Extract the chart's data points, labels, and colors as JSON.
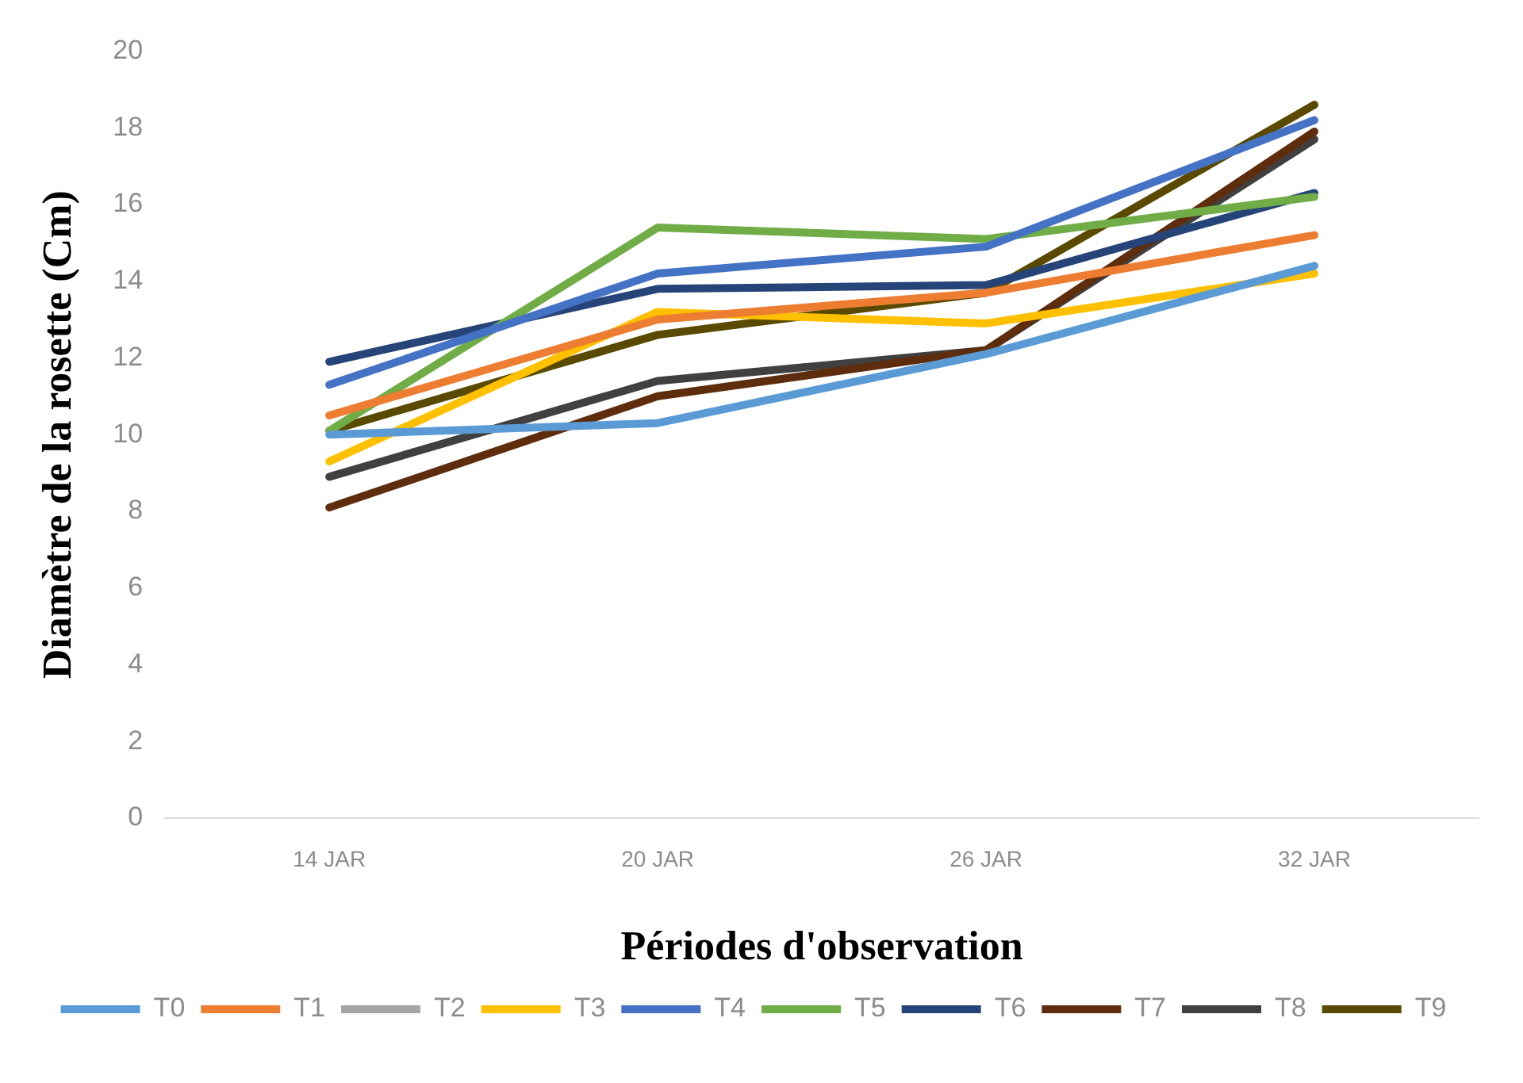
{
  "chart_data": {
    "type": "line",
    "xlabel": "Périodes d'observation",
    "ylabel": "Diamètre de la rosette (Cm)",
    "categories": [
      "14 JAR",
      "20 JAR",
      "26 JAR",
      "32 JAR"
    ],
    "ylim": [
      0,
      20
    ],
    "yticks": [
      0,
      2,
      4,
      6,
      8,
      10,
      12,
      14,
      16,
      18,
      20
    ],
    "grid": false,
    "legend": "bottom",
    "marker": "none",
    "line_style": "solid",
    "series": [
      {
        "name": "T0",
        "color": "#5b9bd5",
        "values": [
          10.0,
          10.3,
          12.1,
          14.4
        ]
      },
      {
        "name": "T1",
        "color": "#ed7d31",
        "values": [
          10.5,
          13.0,
          13.7,
          15.2
        ]
      },
      {
        "name": "T2",
        "color": "#a5a5a5",
        "values": [
          null,
          null,
          null,
          null
        ]
      },
      {
        "name": "T3",
        "color": "#ffc000",
        "values": [
          9.3,
          13.2,
          12.9,
          14.2
        ]
      },
      {
        "name": "T4",
        "color": "#4472c4",
        "values": [
          11.3,
          14.2,
          14.9,
          18.2
        ]
      },
      {
        "name": "T5",
        "color": "#70ad47",
        "values": [
          10.1,
          15.4,
          15.1,
          16.2
        ]
      },
      {
        "name": "T6",
        "color": "#264478",
        "values": [
          11.9,
          13.8,
          13.9,
          16.3
        ]
      },
      {
        "name": "T7",
        "color": "#5e2d0e",
        "values": [
          8.1,
          11.0,
          12.2,
          17.9
        ]
      },
      {
        "name": "T8",
        "color": "#404040",
        "values": [
          8.9,
          11.4,
          12.2,
          17.7
        ]
      },
      {
        "name": "T9",
        "color": "#5a4a00",
        "values": [
          10.1,
          12.6,
          13.7,
          18.6
        ]
      }
    ]
  }
}
